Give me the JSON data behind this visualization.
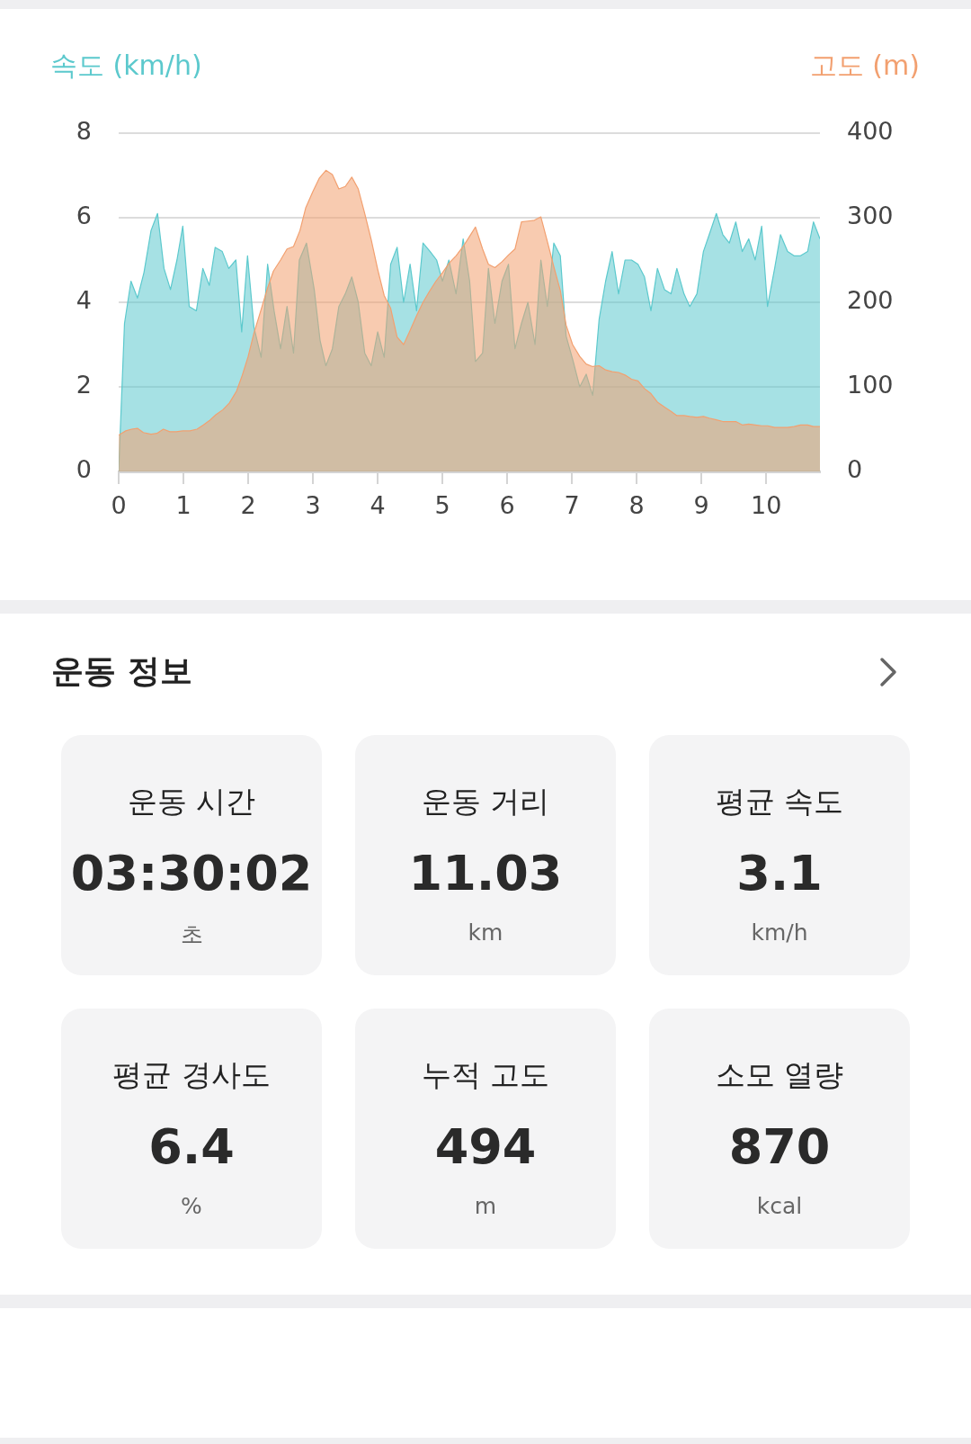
{
  "chart_data": [
    {
      "type": "area",
      "ylabel": "속도 (km/h)",
      "y2label": "고도 (m)",
      "xlim": [
        0,
        10.83
      ],
      "xticks": [
        0,
        1,
        2,
        3,
        4,
        5,
        6,
        7,
        8,
        9,
        10
      ],
      "ylim": [
        0,
        8
      ],
      "yticks": [
        0,
        2,
        4,
        6,
        8
      ],
      "y2lim": [
        0,
        400
      ],
      "y2ticks": [
        0,
        100,
        200,
        300,
        400
      ],
      "grid": "y",
      "series": [
        {
          "color": "#5cc9cd",
          "x": [
            0,
            0.09,
            0.19,
            0.29,
            0.39,
            0.5,
            0.6,
            0.7,
            0.8,
            0.9,
            0.99,
            1.09,
            1.2,
            1.3,
            1.4,
            1.49,
            1.6,
            1.7,
            1.81,
            1.9,
            1.99,
            2.09,
            2.2,
            2.3,
            2.4,
            2.5,
            2.6,
            2.7,
            2.79,
            2.9,
            3.02,
            3.11,
            3.2,
            3.3,
            3.4,
            3.5,
            3.6,
            3.7,
            3.8,
            3.9,
            4.0,
            4.1,
            4.2,
            4.3,
            4.4,
            4.5,
            4.6,
            4.7,
            4.81,
            4.91,
            5.0,
            5.1,
            5.21,
            5.32,
            5.42,
            5.51,
            5.62,
            5.71,
            5.81,
            5.92,
            6.02,
            6.12,
            6.22,
            6.32,
            6.43,
            6.52,
            6.62,
            6.72,
            6.82,
            6.91,
            7.02,
            7.12,
            7.22,
            7.32,
            7.42,
            7.52,
            7.62,
            7.72,
            7.82,
            7.92,
            8.02,
            8.12,
            8.22,
            8.32,
            8.43,
            8.53,
            8.62,
            8.73,
            8.82,
            8.93,
            9.03,
            9.12,
            9.23,
            9.33,
            9.43,
            9.53,
            9.63,
            9.73,
            9.83,
            9.93,
            10.02,
            10.13,
            10.22,
            10.33,
            10.43,
            10.53,
            10.64,
            10.73,
            10.83
          ],
          "values": [
            0,
            3.5,
            4.5,
            4.1,
            4.7,
            5.7,
            6.1,
            4.8,
            4.3,
            5.0,
            5.8,
            3.9,
            3.8,
            4.8,
            4.4,
            5.3,
            5.2,
            4.8,
            5.0,
            3.3,
            5.1,
            3.4,
            2.7,
            4.9,
            3.8,
            2.9,
            3.9,
            2.8,
            5.0,
            5.4,
            4.3,
            3.1,
            2.5,
            2.9,
            3.9,
            4.2,
            4.6,
            4.0,
            2.8,
            2.5,
            3.3,
            2.7,
            4.9,
            5.3,
            4.0,
            4.9,
            3.8,
            5.4,
            5.2,
            5.0,
            4.5,
            5.0,
            4.2,
            5.5,
            4.5,
            2.6,
            2.8,
            4.8,
            3.5,
            4.5,
            4.9,
            2.9,
            3.5,
            4.0,
            3.0,
            5.0,
            3.9,
            5.4,
            5.1,
            3.2,
            2.6,
            2.0,
            2.3,
            1.8,
            3.6,
            4.5,
            5.2,
            4.2,
            5.0,
            5.0,
            4.9,
            4.6,
            3.8,
            4.8,
            4.3,
            4.2,
            4.8,
            4.2,
            3.9,
            4.2,
            5.2,
            5.6,
            6.1,
            5.6,
            5.4,
            5.9,
            5.2,
            5.5,
            5.0,
            5.8,
            3.9,
            4.8,
            5.6,
            5.2,
            5.1,
            5.1,
            5.2,
            5.9,
            5.5
          ]
        },
        {
          "color": "#f2a070",
          "axis": "y2",
          "x": [
            0,
            0.11,
            0.2,
            0.29,
            0.38,
            0.5,
            0.59,
            0.69,
            0.79,
            0.89,
            0.99,
            1.1,
            1.21,
            1.31,
            1.4,
            1.5,
            1.61,
            1.71,
            1.82,
            1.91,
            2.0,
            2.09,
            2.19,
            2.3,
            2.39,
            2.5,
            2.6,
            2.7,
            2.8,
            2.89,
            3.0,
            3.1,
            3.2,
            3.3,
            3.4,
            3.5,
            3.6,
            3.7,
            3.8,
            3.9,
            4.0,
            4.1,
            4.2,
            4.3,
            4.4,
            4.49,
            4.6,
            4.7,
            4.8,
            4.9,
            5.0,
            5.11,
            5.21,
            5.32,
            5.42,
            5.51,
            5.62,
            5.71,
            5.81,
            5.92,
            6.02,
            6.12,
            6.22,
            6.32,
            6.42,
            6.52,
            6.62,
            6.72,
            6.82,
            6.91,
            7.01,
            7.12,
            7.22,
            7.32,
            7.42,
            7.52,
            7.62,
            7.72,
            7.82,
            7.92,
            8.02,
            8.12,
            8.22,
            8.32,
            8.43,
            8.53,
            8.62,
            8.73,
            8.82,
            8.93,
            9.03,
            9.12,
            9.23,
            9.33,
            9.43,
            9.53,
            9.63,
            9.73,
            9.83,
            9.93,
            10.02,
            10.13,
            10.22,
            10.33,
            10.43,
            10.53,
            10.64,
            10.73,
            10.83
          ],
          "values": [
            43,
            48,
            50,
            51,
            46,
            44,
            45,
            50,
            47,
            47,
            48,
            48,
            50,
            55,
            60,
            67,
            73,
            81,
            95,
            114,
            136,
            164,
            189,
            217,
            237,
            250,
            263,
            266,
            285,
            312,
            331,
            347,
            356,
            351,
            334,
            337,
            348,
            334,
            305,
            274,
            239,
            208,
            193,
            159,
            150,
            165,
            184,
            200,
            213,
            225,
            235,
            247,
            255,
            266,
            278,
            289,
            263,
            245,
            241,
            248,
            256,
            263,
            295,
            296,
            297,
            301,
            272,
            242,
            214,
            173,
            150,
            136,
            127,
            124,
            125,
            120,
            118,
            117,
            114,
            109,
            107,
            98,
            92,
            82,
            76,
            71,
            66,
            66,
            65,
            64,
            65,
            63,
            61,
            59,
            59,
            59,
            55,
            56,
            55,
            54,
            54,
            52,
            52,
            52,
            53,
            55,
            55,
            53,
            53
          ]
        }
      ]
    },
    {
      "type": "other",
      "title": "운동 정보",
      "annotations": [
        "운동 시간",
        "03:30:02",
        "초",
        "운동 거리",
        "11.03",
        "km",
        "평균 속도",
        "3.1",
        "km/h",
        "평균 경사도",
        "6.4",
        "%",
        "누적 고도",
        "494",
        "m",
        "소모 열량",
        "870",
        "kcal"
      ]
    }
  ]
}
